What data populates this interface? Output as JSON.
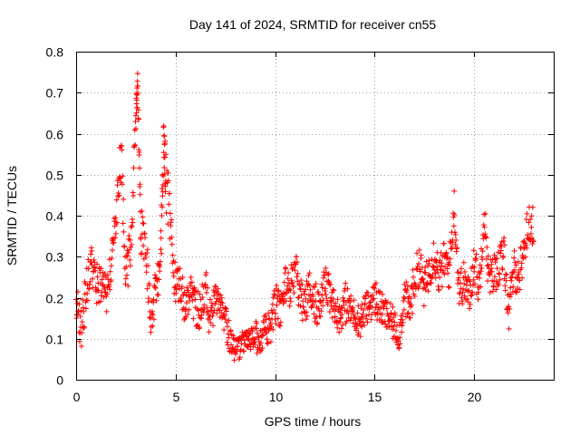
{
  "chart_data": {
    "type": "scatter",
    "title": "Day 141 of 2024, SRMTID for receiver cn55",
    "xlabel": "GPS time / hours",
    "ylabel": "SRMTID / TECUs",
    "xlim": [
      0,
      24
    ],
    "ylim": [
      0,
      0.8
    ],
    "xticks": [
      0,
      5,
      10,
      15,
      20
    ],
    "xtick_labels": [
      "0",
      "5",
      "10",
      "15",
      "20"
    ],
    "yticks": [
      0,
      0.1,
      0.2,
      0.3,
      0.4,
      0.5,
      0.6,
      0.7,
      0.8
    ],
    "ytick_labels": [
      "0",
      "0.1",
      "0.2",
      "0.3",
      "0.4",
      "0.5",
      "0.6",
      "0.7",
      "0.8"
    ],
    "grid": true,
    "marker": "+",
    "series": [
      {
        "name": "cn55",
        "color": "#ff0000",
        "x": [
          0.0,
          0.25,
          0.5,
          0.75,
          1.0,
          1.25,
          1.5,
          1.75,
          2.0,
          2.25,
          2.5,
          2.75,
          3.0,
          3.1,
          3.25,
          3.5,
          3.75,
          4.0,
          4.25,
          4.4,
          4.5,
          4.75,
          5.0,
          5.25,
          5.5,
          5.75,
          6.0,
          6.25,
          6.5,
          6.75,
          7.0,
          7.25,
          7.5,
          7.75,
          8.0,
          8.25,
          8.5,
          8.75,
          9.0,
          9.25,
          9.5,
          9.75,
          10.0,
          10.25,
          10.5,
          10.75,
          11.0,
          11.25,
          11.5,
          11.75,
          12.0,
          12.25,
          12.5,
          12.75,
          13.0,
          13.25,
          13.5,
          13.75,
          14.0,
          14.25,
          14.5,
          14.75,
          15.0,
          15.25,
          15.5,
          15.75,
          16.0,
          16.25,
          16.5,
          16.75,
          17.0,
          17.25,
          17.5,
          17.75,
          18.0,
          18.25,
          18.5,
          18.75,
          19.0,
          19.25,
          19.5,
          19.75,
          20.0,
          20.25,
          20.5,
          20.75,
          21.0,
          21.25,
          21.5,
          21.75,
          22.0,
          22.25,
          22.5,
          22.75
        ],
        "y": [
          0.2,
          0.12,
          0.22,
          0.28,
          0.23,
          0.24,
          0.2,
          0.27,
          0.4,
          0.55,
          0.28,
          0.3,
          0.64,
          0.7,
          0.36,
          0.33,
          0.15,
          0.22,
          0.29,
          0.58,
          0.5,
          0.38,
          0.21,
          0.24,
          0.17,
          0.22,
          0.18,
          0.16,
          0.23,
          0.14,
          0.2,
          0.17,
          0.14,
          0.1,
          0.07,
          0.08,
          0.1,
          0.09,
          0.11,
          0.09,
          0.13,
          0.12,
          0.19,
          0.16,
          0.24,
          0.22,
          0.27,
          0.2,
          0.18,
          0.22,
          0.19,
          0.17,
          0.24,
          0.2,
          0.18,
          0.15,
          0.19,
          0.17,
          0.16,
          0.14,
          0.17,
          0.18,
          0.2,
          0.18,
          0.16,
          0.15,
          0.13,
          0.11,
          0.2,
          0.17,
          0.24,
          0.28,
          0.22,
          0.27,
          0.31,
          0.25,
          0.29,
          0.27,
          0.42,
          0.22,
          0.24,
          0.2,
          0.29,
          0.22,
          0.41,
          0.24,
          0.26,
          0.28,
          0.3,
          0.16,
          0.27,
          0.25,
          0.32,
          0.38
        ],
        "spread": [
          0.05,
          0.06,
          0.05,
          0.05,
          0.05,
          0.05,
          0.05,
          0.05,
          0.05,
          0.08,
          0.06,
          0.05,
          0.06,
          0.04,
          0.06,
          0.06,
          0.05,
          0.05,
          0.06,
          0.06,
          0.08,
          0.06,
          0.05,
          0.05,
          0.05,
          0.05,
          0.05,
          0.05,
          0.05,
          0.04,
          0.04,
          0.04,
          0.04,
          0.03,
          0.03,
          0.03,
          0.03,
          0.03,
          0.04,
          0.03,
          0.04,
          0.04,
          0.05,
          0.04,
          0.05,
          0.05,
          0.05,
          0.05,
          0.05,
          0.04,
          0.05,
          0.04,
          0.05,
          0.04,
          0.04,
          0.04,
          0.05,
          0.04,
          0.04,
          0.04,
          0.04,
          0.04,
          0.05,
          0.04,
          0.04,
          0.04,
          0.04,
          0.04,
          0.05,
          0.05,
          0.05,
          0.05,
          0.05,
          0.05,
          0.05,
          0.05,
          0.05,
          0.05,
          0.05,
          0.05,
          0.05,
          0.05,
          0.05,
          0.05,
          0.05,
          0.05,
          0.05,
          0.05,
          0.05,
          0.05,
          0.05,
          0.05,
          0.05,
          0.05
        ]
      }
    ]
  }
}
